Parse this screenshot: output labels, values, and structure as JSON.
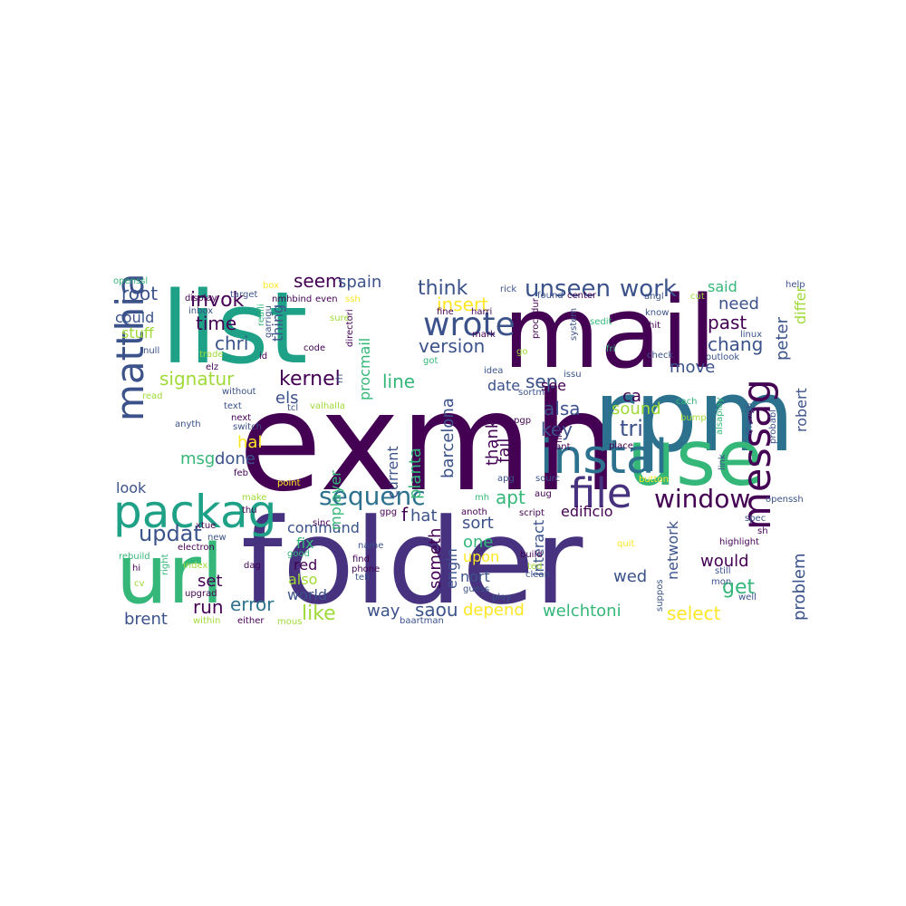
{
  "colors": {
    "background": "#ffffff",
    "palette": [
      "#440154",
      "#46327e",
      "#365c8d",
      "#277f8e",
      "#1fa187",
      "#4ac16d",
      "#a0da39",
      "#fde725"
    ]
  },
  "words": [
    {
      "text": "exmh",
      "color": "#440154"
    },
    {
      "text": "folder",
      "color": "#46327e"
    },
    {
      "text": "list",
      "color": "#1fa187"
    },
    {
      "text": "mail",
      "color": "#440154"
    },
    {
      "text": "rpm",
      "color": "#2c728e"
    },
    {
      "text": "use",
      "color": "#35b779"
    },
    {
      "text": "url",
      "color": "#35b779"
    },
    {
      "text": "packag",
      "color": "#1fa187"
    },
    {
      "text": "instal",
      "color": "#2c728e"
    },
    {
      "text": "file",
      "color": "#46327e"
    },
    {
      "text": "messag",
      "color": "#440154"
    },
    {
      "text": "window",
      "color": "#440154"
    },
    {
      "text": "wrote",
      "color": "#3b528b"
    },
    {
      "text": "sequenc",
      "color": "#2c728e"
    },
    {
      "text": "matthia",
      "color": "#3b528b"
    },
    {
      "text": "unseen",
      "color": "#3b528b"
    },
    {
      "text": "work",
      "color": "#3b528b"
    },
    {
      "text": "updat",
      "color": "#3b528b"
    },
    {
      "text": "invok",
      "color": "#440154"
    },
    {
      "text": "kernel",
      "color": "#440154"
    },
    {
      "text": "think",
      "color": "#3b528b"
    },
    {
      "text": "version",
      "color": "#3b528b"
    },
    {
      "text": "past",
      "color": "#440154"
    },
    {
      "text": "chang",
      "color": "#3b528b"
    },
    {
      "text": "tri",
      "color": "#3b528b"
    },
    {
      "text": "root",
      "color": "#3b528b"
    },
    {
      "text": "time",
      "color": "#440154"
    },
    {
      "text": "chri",
      "color": "#3b528b"
    },
    {
      "text": "seem",
      "color": "#440154"
    },
    {
      "text": "spain",
      "color": "#3b528b"
    },
    {
      "text": "signatur",
      "color": "#a0da39"
    },
    {
      "text": "line",
      "color": "#35b779"
    },
    {
      "text": "els",
      "color": "#3b528b"
    },
    {
      "text": "hal",
      "color": "#fde725"
    },
    {
      "text": "msg",
      "color": "#35b779"
    },
    {
      "text": "done",
      "color": "#3b528b"
    },
    {
      "text": "alsa",
      "color": "#3b528b"
    },
    {
      "text": "sep",
      "color": "#3b528b"
    },
    {
      "text": "key",
      "color": "#3b528b"
    },
    {
      "text": "sound",
      "color": "#a0da39"
    },
    {
      "text": "ca",
      "color": "#440154"
    },
    {
      "text": "insert",
      "color": "#fde725"
    },
    {
      "text": "need",
      "color": "#3b528b"
    },
    {
      "text": "said",
      "color": "#35b779"
    },
    {
      "text": "move",
      "color": "#3b528b"
    },
    {
      "text": "peter",
      "color": "#3b528b"
    },
    {
      "text": "differ",
      "color": "#a0da39"
    },
    {
      "text": "get",
      "color": "#35b779"
    },
    {
      "text": "would",
      "color": "#440154"
    },
    {
      "text": "problem",
      "color": "#3b528b"
    },
    {
      "text": "select",
      "color": "#fde725"
    },
    {
      "text": "network",
      "color": "#3b528b"
    },
    {
      "text": "welchtoni",
      "color": "#35b779"
    },
    {
      "text": "depend",
      "color": "#fde725"
    },
    {
      "text": "saou",
      "color": "#3b528b"
    },
    {
      "text": "like",
      "color": "#a0da39"
    },
    {
      "text": "way",
      "color": "#3b528b"
    },
    {
      "text": "brent",
      "color": "#3b528b"
    },
    {
      "text": "run",
      "color": "#440154"
    },
    {
      "text": "error",
      "color": "#2c728e"
    },
    {
      "text": "set",
      "color": "#440154"
    },
    {
      "text": "look",
      "color": "#3b528b"
    },
    {
      "text": "world",
      "color": "#3b528b"
    },
    {
      "text": "also",
      "color": "#a0da39"
    },
    {
      "text": "red",
      "color": "#440154"
    },
    {
      "text": "fix",
      "color": "#35b779"
    },
    {
      "text": "command",
      "color": "#3b528b"
    },
    {
      "text": "hat",
      "color": "#3b528b"
    },
    {
      "text": "sort",
      "color": "#3b528b"
    },
    {
      "text": "one",
      "color": "#35b779"
    },
    {
      "text": "upon",
      "color": "#fde725"
    },
    {
      "text": "nort",
      "color": "#3b528b"
    },
    {
      "text": "wed",
      "color": "#3b528b"
    },
    {
      "text": "apt",
      "color": "#35b779"
    },
    {
      "text": "edificio",
      "color": "#440154"
    },
    {
      "text": "date",
      "color": "#3b528b"
    },
    {
      "text": "see",
      "color": "#440154"
    },
    {
      "text": "thank",
      "color": "#440154"
    },
    {
      "text": "fail",
      "color": "#440154"
    },
    {
      "text": "barcelona",
      "color": "#3b528b"
    },
    {
      "text": "planta",
      "color": "#35b779"
    },
    {
      "text": "current",
      "color": "#3b528b"
    },
    {
      "text": "mplayer",
      "color": "#35b779"
    },
    {
      "text": "procmail",
      "color": "#35b779"
    },
    {
      "text": "someth",
      "color": "#440154"
    },
    {
      "text": "engin",
      "color": "#3b528b"
    },
    {
      "text": "interact",
      "color": "#3b528b"
    },
    {
      "text": "robert",
      "color": "#3b528b"
    },
    {
      "text": "stuff",
      "color": "#a0da39"
    },
    {
      "text": "could",
      "color": "#3b528b"
    },
    {
      "text": "thing",
      "color": "#3b528b"
    },
    {
      "text": "f",
      "color": "#440154"
    },
    {
      "text": "openssl",
      "color": "#35b779"
    },
    {
      "text": "box",
      "color": "#fde725"
    },
    {
      "text": "target",
      "color": "#3b528b"
    },
    {
      "text": "display",
      "color": "#440154"
    },
    {
      "text": "inbox",
      "color": "#3b528b"
    },
    {
      "text": "trade",
      "color": "#a0da39"
    },
    {
      "text": "null",
      "color": "#3b528b"
    },
    {
      "text": "elz",
      "color": "#440154"
    },
    {
      "text": "id",
      "color": "#440154"
    },
    {
      "text": "read",
      "color": "#a0da39"
    },
    {
      "text": "without",
      "color": "#3b528b"
    },
    {
      "text": "text",
      "color": "#3b528b"
    },
    {
      "text": "next",
      "color": "#440154"
    },
    {
      "text": "switch",
      "color": "#3b528b"
    },
    {
      "text": "anyth",
      "color": "#3b528b"
    },
    {
      "text": "feb",
      "color": "#440154"
    },
    {
      "text": "make",
      "color": "#a0da39"
    },
    {
      "text": "thu",
      "color": "#440154"
    },
    {
      "text": "xtue",
      "color": "#440154"
    },
    {
      "text": "new",
      "color": "#3b528b"
    },
    {
      "text": "electron",
      "color": "#440154"
    },
    {
      "text": "rebuild",
      "color": "#35b779"
    },
    {
      "text": "hi",
      "color": "#440154"
    },
    {
      "text": "right",
      "color": "#35b779"
    },
    {
      "text": "index",
      "color": "#a0da39"
    },
    {
      "text": "dag",
      "color": "#440154"
    },
    {
      "text": "cv",
      "color": "#a0da39"
    },
    {
      "text": "upgrad",
      "color": "#440154"
    },
    {
      "text": "within",
      "color": "#a0da39"
    },
    {
      "text": "either",
      "color": "#440154"
    },
    {
      "text": "mous",
      "color": "#a0da39"
    },
    {
      "text": "baartman",
      "color": "#3b528b"
    },
    {
      "text": "nmhbind",
      "color": "#440154"
    },
    {
      "text": "even",
      "color": "#440154"
    },
    {
      "text": "ssh",
      "color": "#fde725"
    },
    {
      "text": "realli",
      "color": "#35b779"
    },
    {
      "text": "sure",
      "color": "#a0da39"
    },
    {
      "text": "garrigu",
      "color": "#3b528b"
    },
    {
      "text": "code",
      "color": "#440154"
    },
    {
      "text": "directori",
      "color": "#440154"
    },
    {
      "text": "got",
      "color": "#35b779"
    },
    {
      "text": "valhalla",
      "color": "#a0da39"
    },
    {
      "text": "tcl",
      "color": "#3b528b"
    },
    {
      "text": "rh",
      "color": "#3b528b"
    },
    {
      "text": "point",
      "color": "#fde725"
    },
    {
      "text": "sinc",
      "color": "#440154"
    },
    {
      "text": "gpg",
      "color": "#440154"
    },
    {
      "text": "good",
      "color": "#35b779"
    },
    {
      "text": "name",
      "color": "#3b528b"
    },
    {
      "text": "find",
      "color": "#440154"
    },
    {
      "text": "phone",
      "color": "#440154"
    },
    {
      "text": "tell",
      "color": "#3b528b"
    },
    {
      "text": "mh",
      "color": "#35b779"
    },
    {
      "text": "anoth",
      "color": "#440154"
    },
    {
      "text": "guess",
      "color": "#3b528b"
    },
    {
      "text": "apg",
      "color": "#3b528b"
    },
    {
      "text": "play",
      "color": "#3b528b"
    },
    {
      "text": "rick",
      "color": "#3b528b"
    },
    {
      "text": "fine",
      "color": "#440154"
    },
    {
      "text": "harri",
      "color": "#440154"
    },
    {
      "text": "mark",
      "color": "#440154"
    },
    {
      "text": "idea",
      "color": "#3b528b"
    },
    {
      "text": "go",
      "color": "#a0da39"
    },
    {
      "text": "sortm",
      "color": "#3b528b"
    },
    {
      "text": "pgp",
      "color": "#440154"
    },
    {
      "text": "issu",
      "color": "#3b528b"
    },
    {
      "text": "found",
      "color": "#3b528b"
    },
    {
      "text": "center",
      "color": "#440154"
    },
    {
      "text": "procedur",
      "color": "#440154"
    },
    {
      "text": "system",
      "color": "#3b528b"
    },
    {
      "text": "script",
      "color": "#440154"
    },
    {
      "text": "sourc",
      "color": "#3b528b"
    },
    {
      "text": "build",
      "color": "#440154"
    },
    {
      "text": "ted",
      "color": "#a0da39"
    },
    {
      "text": "clean",
      "color": "#3b528b"
    },
    {
      "text": "aug",
      "color": "#440154"
    },
    {
      "text": "want",
      "color": "#440154"
    },
    {
      "text": "first",
      "color": "#440154"
    },
    {
      "text": "place",
      "color": "#440154"
    },
    {
      "text": "button",
      "color": "#fde725"
    },
    {
      "text": "sedit",
      "color": "#35b779"
    },
    {
      "text": "hit",
      "color": "#440154"
    },
    {
      "text": "fri",
      "color": "#35b779"
    },
    {
      "text": "check",
      "color": "#3b528b"
    },
    {
      "text": "angl",
      "color": "#3b528b"
    },
    {
      "text": "know",
      "color": "#3b528b"
    },
    {
      "text": "outlook",
      "color": "#3b528b"
    },
    {
      "text": "linux",
      "color": "#3b528b"
    },
    {
      "text": "cut",
      "color": "#a0da39"
    },
    {
      "text": "help",
      "color": "#3b528b"
    },
    {
      "text": "cach",
      "color": "#35b779"
    },
    {
      "text": "bump",
      "color": "#a0da39"
    },
    {
      "text": "alsaplay",
      "color": "#35b779"
    },
    {
      "text": "though",
      "color": "#3b528b"
    },
    {
      "text": "probabl",
      "color": "#3b528b"
    },
    {
      "text": "link",
      "color": "#3b528b"
    },
    {
      "text": "openssh",
      "color": "#3b528b"
    },
    {
      "text": "spec",
      "color": "#3b528b"
    },
    {
      "text": "sh",
      "color": "#440154"
    },
    {
      "text": "quit",
      "color": "#fde725"
    },
    {
      "text": "highlight",
      "color": "#440154"
    },
    {
      "text": "still",
      "color": "#3b528b"
    },
    {
      "text": "mon",
      "color": "#3b528b"
    },
    {
      "text": "well",
      "color": "#3b528b"
    },
    {
      "text": "suppos",
      "color": "#3b528b"
    }
  ]
}
